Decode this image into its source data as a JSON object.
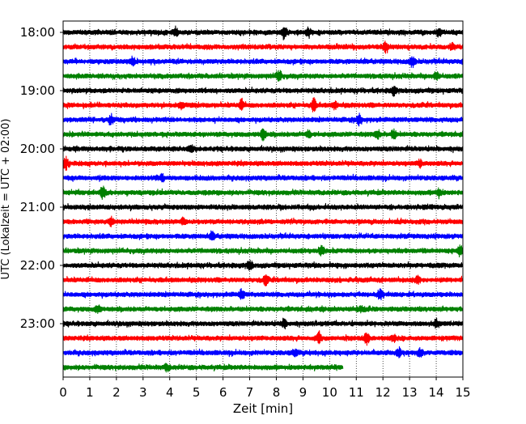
{
  "chart_data": {
    "type": "line",
    "title": "",
    "xlabel": "Zeit  [min]",
    "ylabel": "UTC (Lokalzeit = UTC + 02:00)",
    "xlim": [
      0,
      15
    ],
    "x_ticks": [
      0,
      1,
      2,
      3,
      4,
      5,
      6,
      7,
      8,
      9,
      10,
      11,
      12,
      13,
      14,
      15
    ],
    "x_tick_labels": [
      "0",
      "1",
      "2",
      "3",
      "4",
      "5",
      "6",
      "7",
      "8",
      "9",
      "10",
      "11",
      "12",
      "13",
      "14",
      "15"
    ],
    "y_ticks": [
      "18:00",
      "19:00",
      "20:00",
      "21:00",
      "22:00",
      "23:00"
    ],
    "start_time": "18:00",
    "row_interval_min": 15,
    "grid": "vertical dotted at each minute",
    "trace_colors": [
      "#000000",
      "#ff0000",
      "#0000ff",
      "#008000"
    ],
    "series": [
      {
        "start": "18:00",
        "color": "#000000",
        "x_end": 15,
        "events": [
          {
            "x": 4.2,
            "amp": 1.0
          },
          {
            "x": 8.3,
            "amp": 1.2
          },
          {
            "x": 9.2,
            "amp": 0.8
          },
          {
            "x": 14.1,
            "amp": 0.8
          }
        ]
      },
      {
        "start": "18:15",
        "color": "#ff0000",
        "x_end": 15,
        "events": [
          {
            "x": 12.1,
            "amp": 0.8
          },
          {
            "x": 14.6,
            "amp": 0.6
          }
        ]
      },
      {
        "start": "18:30",
        "color": "#0000ff",
        "x_end": 15,
        "events": [
          {
            "x": 2.6,
            "amp": 0.7
          },
          {
            "x": 13.1,
            "amp": 1.0
          }
        ]
      },
      {
        "start": "18:45",
        "color": "#008000",
        "x_end": 15,
        "events": [
          {
            "x": 8.1,
            "amp": 1.1
          },
          {
            "x": 14.0,
            "amp": 0.8
          }
        ]
      },
      {
        "start": "19:00",
        "color": "#000000",
        "x_end": 15,
        "events": [
          {
            "x": 12.4,
            "amp": 0.8
          }
        ]
      },
      {
        "start": "19:15",
        "color": "#ff0000",
        "x_end": 15,
        "events": [
          {
            "x": 4.4,
            "amp": 0.7
          },
          {
            "x": 6.7,
            "amp": 0.9
          },
          {
            "x": 9.4,
            "amp": 1.2
          },
          {
            "x": 10.2,
            "amp": 0.7
          }
        ]
      },
      {
        "start": "19:30",
        "color": "#0000ff",
        "x_end": 15,
        "events": [
          {
            "x": 1.8,
            "amp": 0.7
          },
          {
            "x": 11.1,
            "amp": 1.0
          }
        ]
      },
      {
        "start": "19:45",
        "color": "#008000",
        "x_end": 15,
        "events": [
          {
            "x": 7.5,
            "amp": 1.2
          },
          {
            "x": 9.2,
            "amp": 0.7
          },
          {
            "x": 11.8,
            "amp": 0.8
          },
          {
            "x": 12.4,
            "amp": 0.9
          }
        ]
      },
      {
        "start": "20:00",
        "color": "#000000",
        "x_end": 15,
        "events": [
          {
            "x": 4.8,
            "amp": 0.6
          }
        ]
      },
      {
        "start": "20:15",
        "color": "#ff0000",
        "x_end": 15,
        "events": [
          {
            "x": 0.1,
            "amp": 1.1
          },
          {
            "x": 13.4,
            "amp": 0.7
          }
        ]
      },
      {
        "start": "20:30",
        "color": "#0000ff",
        "x_end": 15,
        "events": [
          {
            "x": 3.7,
            "amp": 0.7
          }
        ]
      },
      {
        "start": "20:45",
        "color": "#008000",
        "x_end": 15,
        "events": [
          {
            "x": 1.5,
            "amp": 1.2
          },
          {
            "x": 14.1,
            "amp": 0.8
          }
        ]
      },
      {
        "start": "21:00",
        "color": "#000000",
        "x_end": 15,
        "events": []
      },
      {
        "start": "21:15",
        "color": "#ff0000",
        "x_end": 15,
        "events": [
          {
            "x": 1.8,
            "amp": 0.8
          },
          {
            "x": 4.5,
            "amp": 0.6
          }
        ]
      },
      {
        "start": "21:30",
        "color": "#0000ff",
        "x_end": 15,
        "events": [
          {
            "x": 5.6,
            "amp": 0.6
          }
        ]
      },
      {
        "start": "21:45",
        "color": "#008000",
        "x_end": 15,
        "events": [
          {
            "x": 9.7,
            "amp": 0.8
          },
          {
            "x": 14.9,
            "amp": 1.0
          }
        ]
      },
      {
        "start": "22:00",
        "color": "#000000",
        "x_end": 15,
        "events": [
          {
            "x": 7.0,
            "amp": 0.9
          }
        ]
      },
      {
        "start": "22:15",
        "color": "#ff0000",
        "x_end": 15,
        "events": [
          {
            "x": 7.6,
            "amp": 0.9
          },
          {
            "x": 13.3,
            "amp": 0.6
          }
        ]
      },
      {
        "start": "22:30",
        "color": "#0000ff",
        "x_end": 15,
        "events": [
          {
            "x": 6.7,
            "amp": 0.8
          },
          {
            "x": 11.9,
            "amp": 0.9
          }
        ]
      },
      {
        "start": "22:45",
        "color": "#008000",
        "x_end": 15,
        "events": [
          {
            "x": 1.3,
            "amp": 0.7
          },
          {
            "x": 11.2,
            "amp": 0.6
          }
        ]
      },
      {
        "start": "23:00",
        "color": "#000000",
        "x_end": 15,
        "events": [
          {
            "x": 8.3,
            "amp": 0.7
          },
          {
            "x": 14.0,
            "amp": 0.7
          }
        ]
      },
      {
        "start": "23:15",
        "color": "#ff0000",
        "x_end": 15,
        "events": [
          {
            "x": 9.6,
            "amp": 0.9
          },
          {
            "x": 11.4,
            "amp": 1.3
          },
          {
            "x": 12.4,
            "amp": 0.6
          }
        ]
      },
      {
        "start": "23:30",
        "color": "#0000ff",
        "x_end": 15,
        "events": [
          {
            "x": 8.7,
            "amp": 0.7
          },
          {
            "x": 12.6,
            "amp": 0.7
          },
          {
            "x": 13.4,
            "amp": 0.8
          }
        ]
      },
      {
        "start": "23:45",
        "color": "#008000",
        "x_end": 10.5,
        "events": [
          {
            "x": 3.9,
            "amp": 0.6
          }
        ]
      }
    ]
  }
}
